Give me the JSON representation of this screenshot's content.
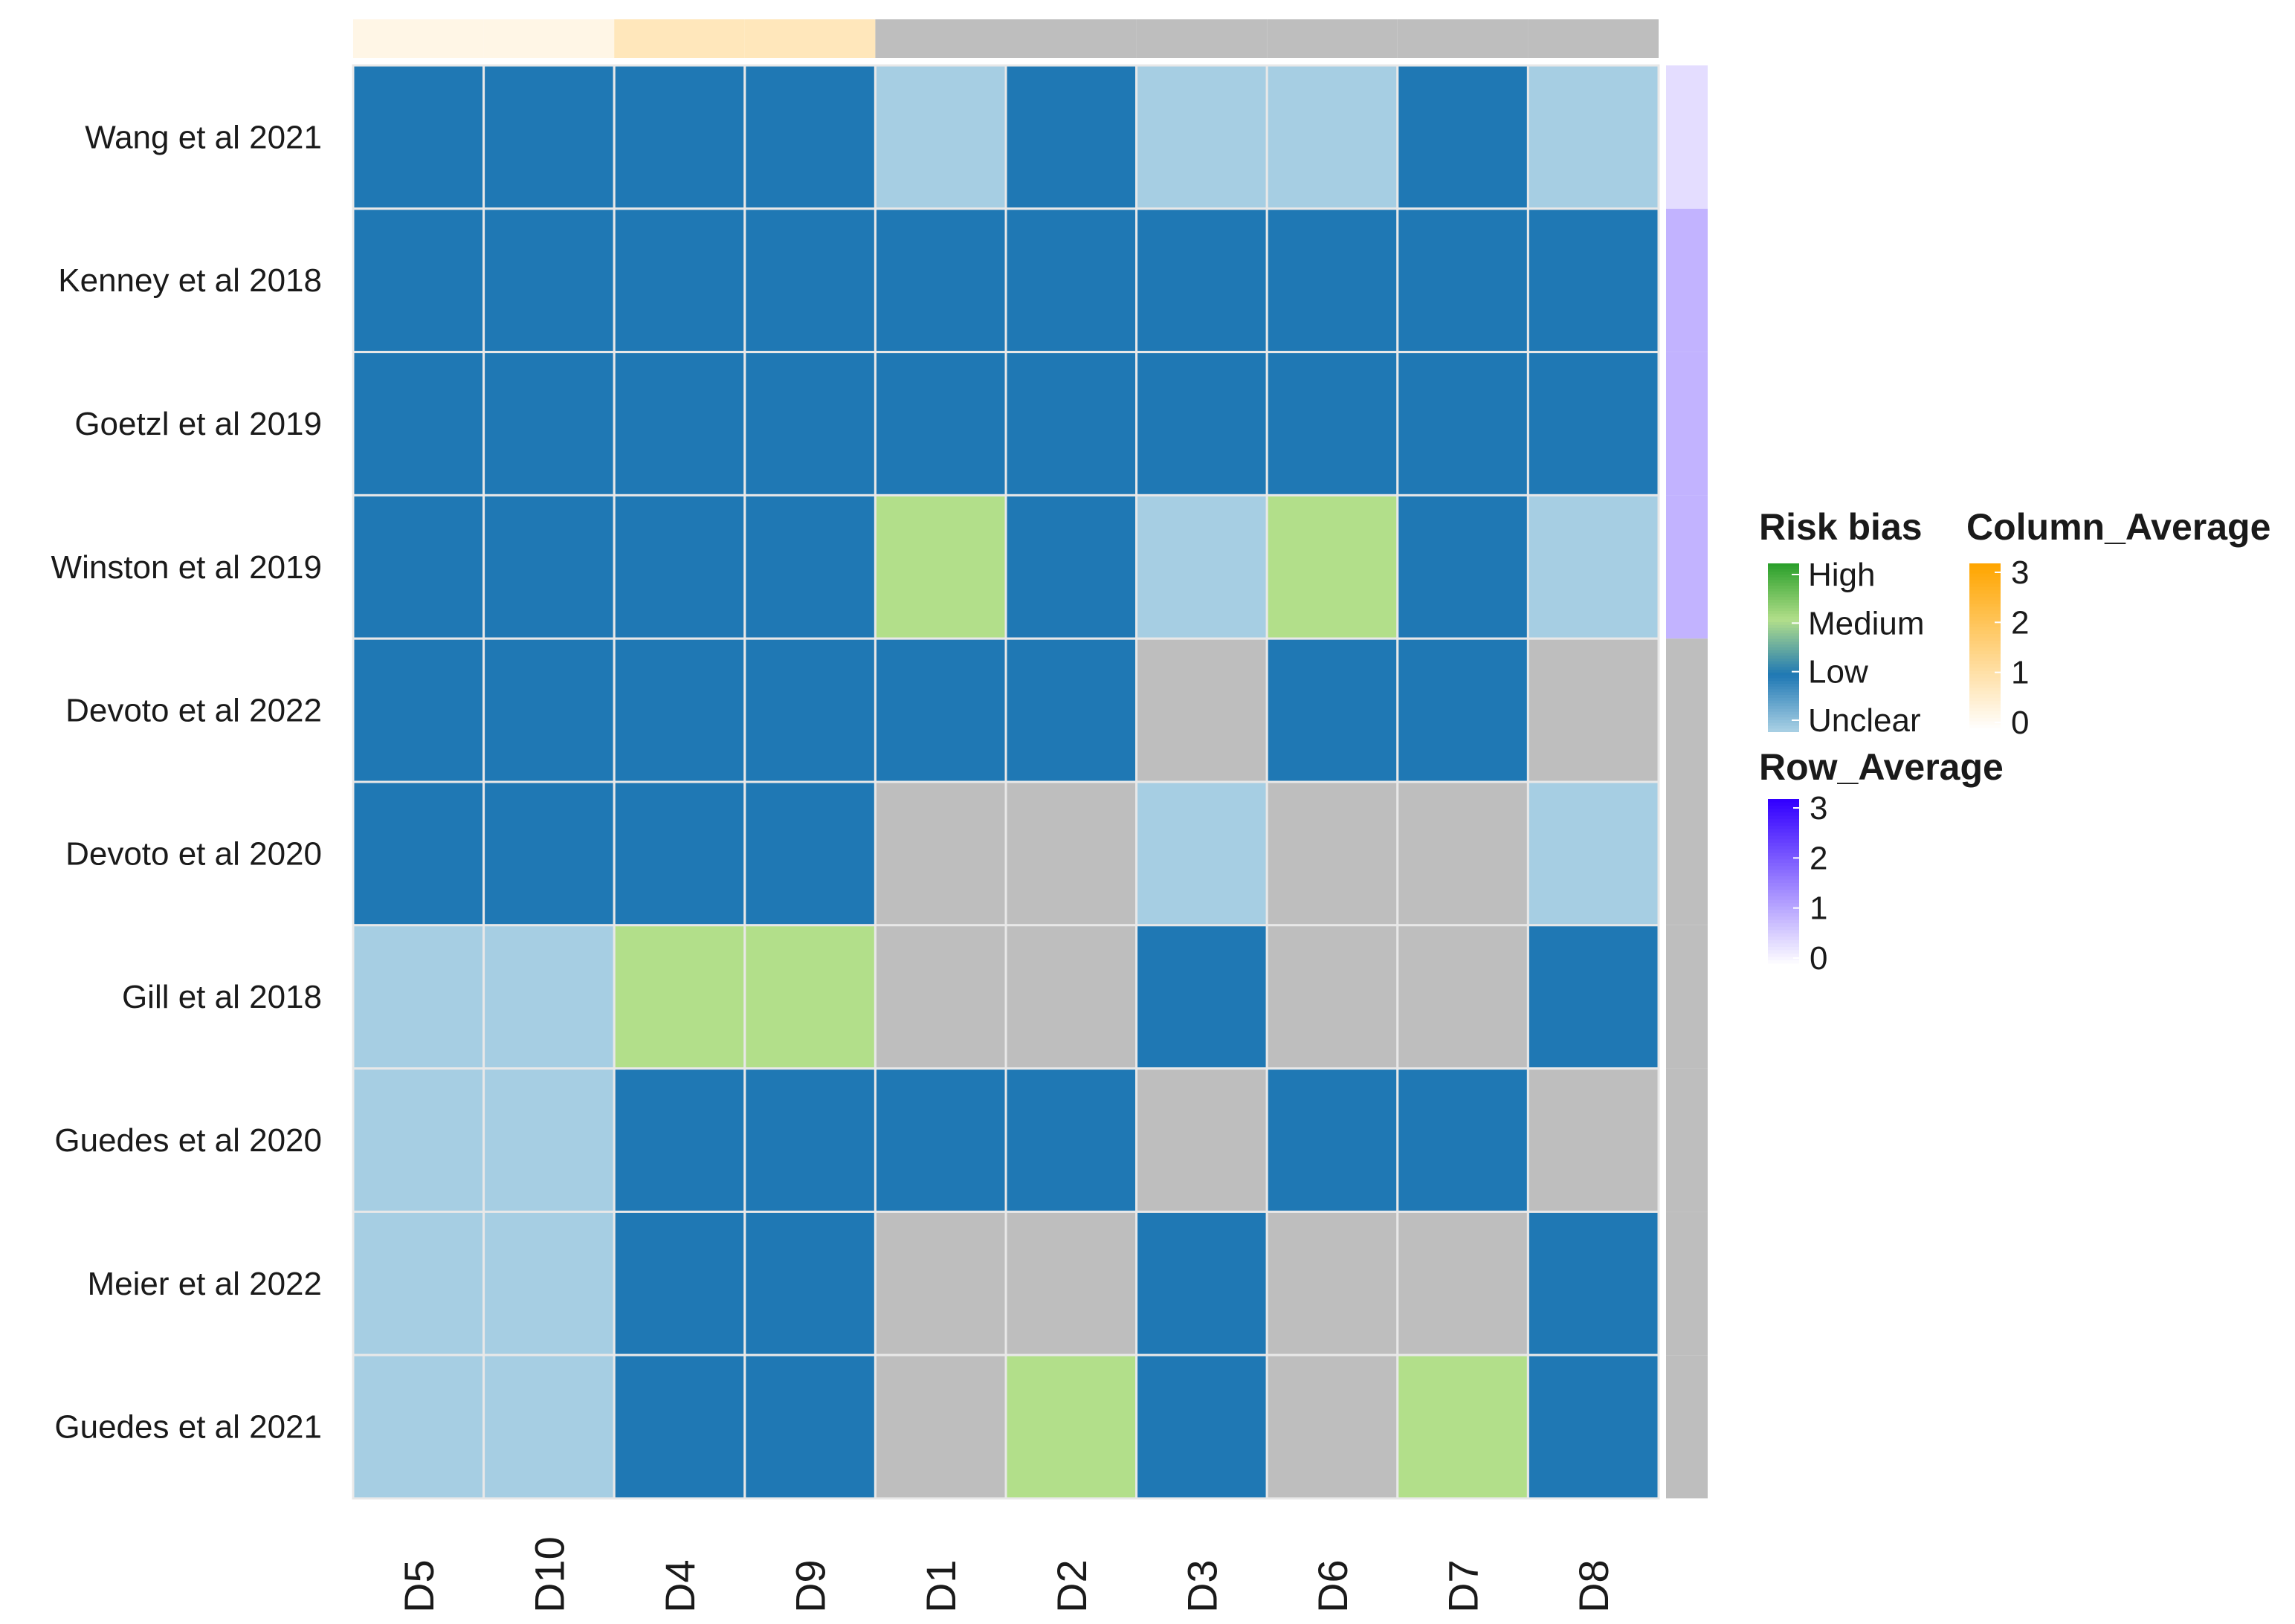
{
  "chart_data": {
    "type": "heatmap",
    "columns": [
      "D5",
      "D10",
      "D4",
      "D9",
      "D1",
      "D2",
      "D3",
      "D6",
      "D7",
      "D8"
    ],
    "rows": [
      "Wang et al 2021",
      "Kenney  et al 2018",
      "Goetzl et al 2019",
      "Winston et al 2019",
      "Devoto et al 2022",
      "Devoto et al 2020",
      "Gill et al 2018",
      "Guedes et al 2020",
      "Meier et al 2022",
      "Guedes et al 2021"
    ],
    "values": [
      [
        "Low",
        "Low",
        "Low",
        "Low",
        "Unclear",
        "Low",
        "Unclear",
        "Unclear",
        "Low",
        "Unclear"
      ],
      [
        "Low",
        "Low",
        "Low",
        "Low",
        "Low",
        "Low",
        "Low",
        "Low",
        "Low",
        "Low"
      ],
      [
        "Low",
        "Low",
        "Low",
        "Low",
        "Low",
        "Low",
        "Low",
        "Low",
        "Low",
        "Low"
      ],
      [
        "Low",
        "Low",
        "Low",
        "Low",
        "Medium",
        "Low",
        "Unclear",
        "Medium",
        "Low",
        "Unclear"
      ],
      [
        "Low",
        "Low",
        "Low",
        "Low",
        "Low",
        "Low",
        null,
        "Low",
        "Low",
        null
      ],
      [
        "Low",
        "Low",
        "Low",
        "Low",
        null,
        null,
        "Unclear",
        null,
        null,
        "Unclear"
      ],
      [
        "Unclear",
        "Unclear",
        "Medium",
        "Medium",
        null,
        null,
        "Low",
        null,
        null,
        "Low"
      ],
      [
        "Unclear",
        "Unclear",
        "Low",
        "Low",
        "Low",
        "Low",
        null,
        "Low",
        "Low",
        null
      ],
      [
        "Unclear",
        "Unclear",
        "Low",
        "Low",
        null,
        null,
        "Low",
        null,
        null,
        "Low"
      ],
      [
        "Unclear",
        "Unclear",
        "Low",
        "Low",
        null,
        "Medium",
        "Low",
        null,
        "Medium",
        "Low"
      ]
    ],
    "column_annotation": {
      "name": "Column_Average",
      "values": [
        0.3,
        0.3,
        0.8,
        0.8,
        null,
        null,
        null,
        null,
        null,
        null
      ]
    },
    "row_annotation": {
      "name": "Row_Average",
      "values": [
        0.4,
        0.9,
        0.9,
        0.9,
        null,
        null,
        null,
        null,
        null,
        null
      ]
    },
    "legends": {
      "risk_bias": {
        "title": "Risk bias",
        "labels": [
          "High",
          "Medium",
          "Low",
          "Unclear"
        ]
      },
      "column_average": {
        "title": "Column_Average",
        "ticks": [
          "3",
          "2",
          "1",
          "0"
        ]
      },
      "row_average": {
        "title": "Row_Average",
        "ticks": [
          "3",
          "2",
          "1",
          "0"
        ]
      }
    },
    "colors": {
      "High": "#2ca02c",
      "Medium": "#b2df8a",
      "Low": "#1f78b4",
      "Unclear": "#a6cee3",
      "missing": "#bebebe",
      "grid": "#e8e8e8",
      "column_scale": [
        "#ffffff",
        "#ffa500"
      ],
      "row_scale": [
        "#ffffff",
        "#3300ff"
      ]
    }
  }
}
